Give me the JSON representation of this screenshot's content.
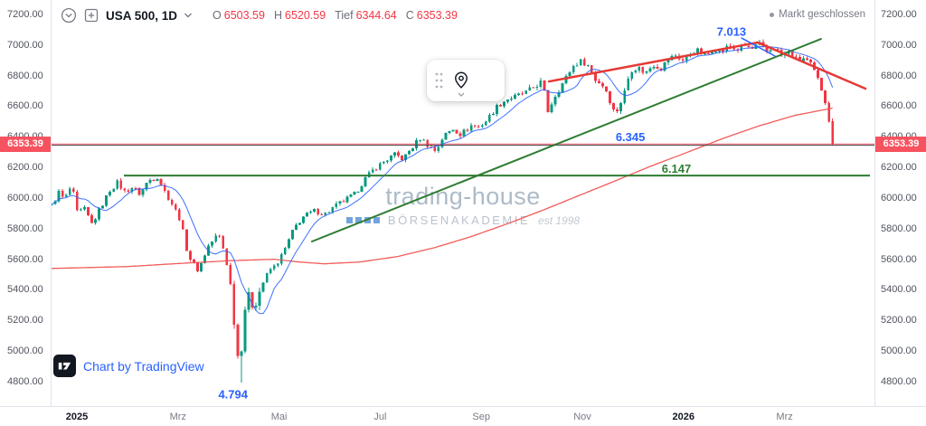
{
  "header": {
    "symbol_title": "USA 500, 1D",
    "ohlc": {
      "o_label": "O",
      "o_value": "6503.59",
      "h_label": "H",
      "h_value": "6520.59",
      "l_label": "Tief",
      "l_value": "6344.64",
      "c_label": "C",
      "c_value": "6353.39"
    },
    "market_status": "Markt geschlossen"
  },
  "watermark": {
    "title": "trading-house",
    "subtitle": "BÖRSENAKADEMIE",
    "est": "est 1998"
  },
  "attribution": {
    "text": "Chart by TradingView"
  },
  "price_axis": {
    "ticks": [
      "7200.00",
      "7000.00",
      "6800.00",
      "6600.00",
      "6400.00",
      "6200.00",
      "6000.00",
      "5800.00",
      "5600.00",
      "5400.00",
      "5200.00",
      "5000.00",
      "4800.00"
    ],
    "current_price_label": "6353.39"
  },
  "time_axis": {
    "ticks": [
      {
        "label": "2025",
        "t": 0,
        "major": true
      },
      {
        "label": "Mrz",
        "t": 2,
        "major": false
      },
      {
        "label": "Mai",
        "t": 4,
        "major": false
      },
      {
        "label": "Jul",
        "t": 6,
        "major": false
      },
      {
        "label": "Sep",
        "t": 8,
        "major": false
      },
      {
        "label": "Nov",
        "t": 10,
        "major": false
      },
      {
        "label": "2026",
        "t": 12,
        "major": true
      },
      {
        "label": "Mrz",
        "t": 14,
        "major": false
      }
    ]
  },
  "chart_data": {
    "type": "candlestick",
    "symbol": "USA 500",
    "interval": "1D",
    "x_unit": "months_from_2025_01",
    "x_range": [
      -0.5,
      15.78
    ],
    "candles_t_range": [
      -0.5,
      14.95
    ],
    "y_range": [
      4640,
      7295
    ],
    "candles_count": 215,
    "current_price": 6353.39,
    "last_candle": {
      "open": 6503.59,
      "high": 6520.59,
      "low": 6344.64,
      "close": 6353.39
    },
    "close_path_anchors": [
      [
        -0.5,
        5950
      ],
      [
        -0.35,
        6040
      ],
      [
        -0.25,
        5985
      ],
      [
        -0.1,
        6085
      ],
      [
        0,
        5905
      ],
      [
        0.15,
        5925
      ],
      [
        0.3,
        5830
      ],
      [
        0.5,
        5955
      ],
      [
        0.65,
        6050
      ],
      [
        0.8,
        6100
      ],
      [
        0.95,
        6040
      ],
      [
        1.1,
        6070
      ],
      [
        1.25,
        6025
      ],
      [
        1.4,
        6110
      ],
      [
        1.6,
        6140
      ],
      [
        1.75,
        6035
      ],
      [
        1.9,
        5955
      ],
      [
        2.05,
        5855
      ],
      [
        2.2,
        5625
      ],
      [
        2.4,
        5525
      ],
      [
        2.6,
        5685
      ],
      [
        2.8,
        5770
      ],
      [
        2.95,
        5615
      ],
      [
        3.05,
        5405
      ],
      [
        3.15,
        5065
      ],
      [
        3.22,
        4860
      ],
      [
        3.3,
        5255
      ],
      [
        3.4,
        5355
      ],
      [
        3.5,
        5285
      ],
      [
        3.65,
        5425
      ],
      [
        3.8,
        5525
      ],
      [
        3.95,
        5565
      ],
      [
        4.1,
        5655
      ],
      [
        4.3,
        5805
      ],
      [
        4.5,
        5885
      ],
      [
        4.7,
        5915
      ],
      [
        4.9,
        5895
      ],
      [
        5.1,
        5945
      ],
      [
        5.3,
        5985
      ],
      [
        5.5,
        6025
      ],
      [
        5.7,
        6125
      ],
      [
        5.9,
        6195
      ],
      [
        6.1,
        6245
      ],
      [
        6.3,
        6285
      ],
      [
        6.45,
        6255
      ],
      [
        6.6,
        6315
      ],
      [
        6.8,
        6395
      ],
      [
        6.95,
        6345
      ],
      [
        7.1,
        6305
      ],
      [
        7.25,
        6405
      ],
      [
        7.45,
        6455
      ],
      [
        7.6,
        6415
      ],
      [
        7.8,
        6475
      ],
      [
        7.95,
        6465
      ],
      [
        8.1,
        6505
      ],
      [
        8.3,
        6595
      ],
      [
        8.5,
        6645
      ],
      [
        8.7,
        6665
      ],
      [
        8.9,
        6695
      ],
      [
        9.05,
        6725
      ],
      [
        9.2,
        6765
      ],
      [
        9.32,
        6565
      ],
      [
        9.45,
        6665
      ],
      [
        9.6,
        6745
      ],
      [
        9.8,
        6855
      ],
      [
        9.95,
        6895
      ],
      [
        10.1,
        6875
      ],
      [
        10.25,
        6775
      ],
      [
        10.45,
        6725
      ],
      [
        10.65,
        6545
      ],
      [
        10.8,
        6655
      ],
      [
        10.95,
        6835
      ],
      [
        11.1,
        6855
      ],
      [
        11.25,
        6815
      ],
      [
        11.4,
        6875
      ],
      [
        11.55,
        6845
      ],
      [
        11.7,
        6905
      ],
      [
        11.85,
        6935
      ],
      [
        12,
        6895
      ],
      [
        12.15,
        6945
      ],
      [
        12.3,
        6965
      ],
      [
        12.45,
        6925
      ],
      [
        12.6,
        6985
      ],
      [
        12.75,
        6955
      ],
      [
        12.9,
        6995
      ],
      [
        13.05,
        6965
      ],
      [
        13.2,
        7000
      ],
      [
        13.35,
        6970
      ],
      [
        13.5,
        7005
      ],
      [
        13.65,
        6955
      ],
      [
        13.8,
        6990
      ],
      [
        13.95,
        6925
      ],
      [
        14.1,
        6960
      ],
      [
        14.25,
        6895
      ],
      [
        14.4,
        6915
      ],
      [
        14.55,
        6855
      ],
      [
        14.7,
        6745
      ],
      [
        14.8,
        6645
      ],
      [
        14.88,
        6508
      ],
      [
        14.95,
        6353.39
      ]
    ],
    "forced_extremes": [
      {
        "t": 3.22,
        "type": "low",
        "price": 4794
      },
      {
        "t": 13.5,
        "type": "high",
        "price": 7013
      }
    ],
    "ma_fast": {
      "kind": "sma",
      "window": 9
    },
    "ma_slow_anchors": [
      [
        -0.5,
        5540
      ],
      [
        1,
        5552
      ],
      [
        2,
        5572
      ],
      [
        3,
        5590
      ],
      [
        3.9,
        5600
      ],
      [
        4.4,
        5582
      ],
      [
        4.9,
        5570
      ],
      [
        5.6,
        5582
      ],
      [
        6.35,
        5618
      ],
      [
        7.1,
        5678
      ],
      [
        7.8,
        5748
      ],
      [
        8.5,
        5830
      ],
      [
        9.2,
        5918
      ],
      [
        9.9,
        6012
      ],
      [
        10.65,
        6112
      ],
      [
        11.35,
        6208
      ],
      [
        12.1,
        6302
      ],
      [
        12.8,
        6392
      ],
      [
        13.5,
        6472
      ],
      [
        14.2,
        6540
      ],
      [
        14.95,
        6588
      ]
    ],
    "levels": [
      {
        "label": "6.147",
        "price": 6147,
        "t1": 0.93,
        "t2": 15.69,
        "color": "#2e7d32",
        "width": 2
      },
      {
        "label": "6.345",
        "price": 6345,
        "t1": -0.5,
        "t2": 15.78,
        "color": "#42464e",
        "width": 1
      }
    ],
    "trend_lines": [
      {
        "name": "ascending-support",
        "t1": 4.65,
        "p1": 5716,
        "t2": 14.72,
        "p2": 7040,
        "color": "#2e7d32",
        "width": 2
      },
      {
        "name": "rising-resistance",
        "t1": 9.34,
        "p1": 6762,
        "t2": 13.47,
        "p2": 7017,
        "color": "#e53935",
        "width": 2.5
      },
      {
        "name": "descending-resistance",
        "t1": 13.47,
        "p1": 7017,
        "t2": 15.6,
        "p2": 6715,
        "color": "#e53935",
        "width": 2.5
      },
      {
        "name": "peak-label-pointer",
        "t1": 13.15,
        "p1": 7046,
        "t2": 13.81,
        "p2": 6928,
        "color": "#2962ff",
        "width": 1.5
      }
    ],
    "annotations": [
      {
        "text": "7.013",
        "t": 12.95,
        "price": 7062,
        "color": "#2962ff"
      },
      {
        "text": "6.345",
        "t": 10.95,
        "price": 6372,
        "color": "#2962ff"
      },
      {
        "text": "6.147",
        "t": 11.86,
        "price": 6165,
        "color": "#2e7d32"
      },
      {
        "text": "4.794",
        "t": 3.09,
        "price": 4690,
        "color": "#2962ff"
      }
    ],
    "colors": {
      "up": "#089981",
      "down": "#f23645",
      "price_line": "#f23645",
      "price_tag_bg": "#f7525f",
      "ma_fast": "#2962ff",
      "ma_slow": "#ef5350"
    }
  }
}
